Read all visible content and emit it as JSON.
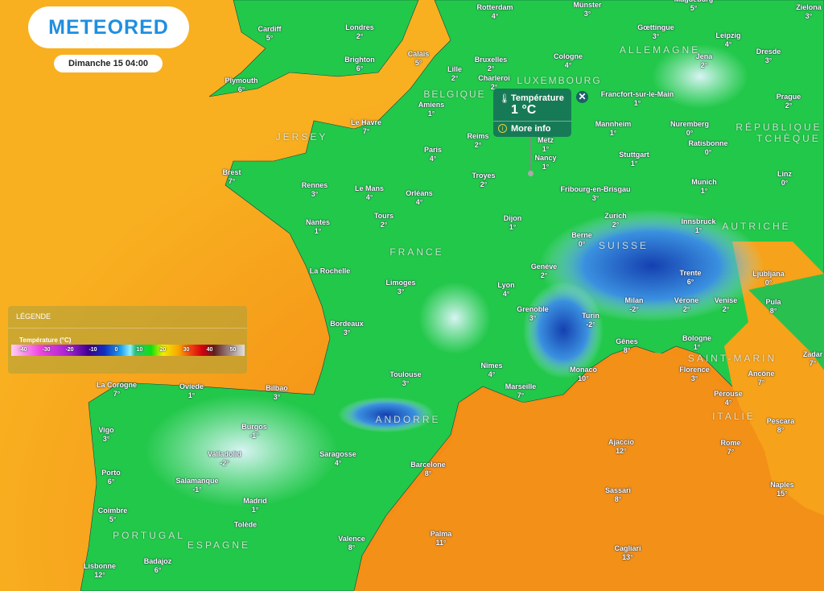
{
  "brand": {
    "logo": "METEORED",
    "date": "Dimanche 15 04:00"
  },
  "colors": {
    "sea": "#f6a21a",
    "land": "#22c84a",
    "cold": "#1e5fc8",
    "logo": "#1f8fe0"
  },
  "tooltip": {
    "icon": "thermometer-icon",
    "title": "Température",
    "value": "1 °C",
    "more": "More info",
    "close": "✕"
  },
  "legend": {
    "title": "LÉGENDE",
    "unit": "Température (°C)",
    "ticks": [
      "-40",
      "-30",
      "-20",
      "-10",
      "0",
      "10",
      "20",
      "30",
      "40",
      "50"
    ]
  },
  "countries": [
    "ALLEMAGNE",
    "BELGIQUE",
    "LUXEMBOURG",
    "RÉPUBLIQUE",
    "TCHÈQUE",
    "JERSEY",
    "FRANCE",
    "SUISSE",
    "AUTRICHE",
    "SAINT-MARIN",
    "ITALIE",
    "ANDORRE",
    "PORTUGAL",
    "ESPAGNE"
  ],
  "cities": [
    {
      "name": "Cardiff",
      "temp": "5°"
    },
    {
      "name": "Londres",
      "temp": "2°"
    },
    {
      "name": "Brighton",
      "temp": "6°"
    },
    {
      "name": "Plymouth",
      "temp": "6°"
    },
    {
      "name": "Rotterdam",
      "temp": "4°"
    },
    {
      "name": "Münster",
      "temp": "3°"
    },
    {
      "name": "Magdeburg",
      "temp": "5°"
    },
    {
      "name": "Zielona",
      "temp": "3°"
    },
    {
      "name": "Calais",
      "temp": "5°"
    },
    {
      "name": "Lille",
      "temp": "2°"
    },
    {
      "name": "Bruxelles",
      "temp": "2°"
    },
    {
      "name": "Charleroi",
      "temp": "2°"
    },
    {
      "name": "Cologne",
      "temp": "4°"
    },
    {
      "name": "Gœttingue",
      "temp": "3°"
    },
    {
      "name": "Leipzig",
      "temp": "4°"
    },
    {
      "name": "Dresde",
      "temp": "3°"
    },
    {
      "name": "Jena",
      "temp": "2°"
    },
    {
      "name": "Francfort-sur-le-Main",
      "temp": "1°"
    },
    {
      "name": "Prague",
      "temp": "2°"
    },
    {
      "name": "Amiens",
      "temp": "1°"
    },
    {
      "name": "Le Havre",
      "temp": "7°"
    },
    {
      "name": "Reims",
      "temp": "2°"
    },
    {
      "name": "Mannheim",
      "temp": "1°"
    },
    {
      "name": "Nuremberg",
      "temp": "0°"
    },
    {
      "name": "Ratisbonne",
      "temp": "0°"
    },
    {
      "name": "Metz",
      "temp": "1°"
    },
    {
      "name": "Nancy",
      "temp": "1°"
    },
    {
      "name": "Stuttgart",
      "temp": "1°"
    },
    {
      "name": "Paris",
      "temp": "4°"
    },
    {
      "name": "Brest",
      "temp": "7°"
    },
    {
      "name": "Rennes",
      "temp": "3°"
    },
    {
      "name": "Le Mans",
      "temp": "4°"
    },
    {
      "name": "Orléans",
      "temp": "4°"
    },
    {
      "name": "Troyes",
      "temp": "2°"
    },
    {
      "name": "Fribourg-en-Brisgau",
      "temp": "3°"
    },
    {
      "name": "Munich",
      "temp": "1°"
    },
    {
      "name": "Linz",
      "temp": "0°"
    },
    {
      "name": "Tours",
      "temp": "2°"
    },
    {
      "name": "Nantes",
      "temp": "1°"
    },
    {
      "name": "Dijon",
      "temp": "1°"
    },
    {
      "name": "Zurich",
      "temp": "2°"
    },
    {
      "name": "Innsbruck",
      "temp": "1°"
    },
    {
      "name": "Berne",
      "temp": "0°"
    },
    {
      "name": "Genève",
      "temp": "2°"
    },
    {
      "name": "La Rochelle",
      "temp": ""
    },
    {
      "name": "Limoges",
      "temp": "3°"
    },
    {
      "name": "Lyon",
      "temp": "4°"
    },
    {
      "name": "Trente",
      "temp": "6°"
    },
    {
      "name": "Ljubljana",
      "temp": "0°"
    },
    {
      "name": "Milan",
      "temp": "-2°"
    },
    {
      "name": "Vérone",
      "temp": "2°"
    },
    {
      "name": "Venise",
      "temp": "2°"
    },
    {
      "name": "Grenoble",
      "temp": "3°"
    },
    {
      "name": "Turin",
      "temp": "-2°"
    },
    {
      "name": "Bordeaux",
      "temp": "3°"
    },
    {
      "name": "Pula",
      "temp": "8°"
    },
    {
      "name": "Gênes",
      "temp": "8°"
    },
    {
      "name": "Bologne",
      "temp": "1°"
    },
    {
      "name": "Zadar",
      "temp": "7°"
    },
    {
      "name": "Nîmes",
      "temp": "4°"
    },
    {
      "name": "Monaco",
      "temp": "10°"
    },
    {
      "name": "Florence",
      "temp": "3°"
    },
    {
      "name": "Ancône",
      "temp": "7°"
    },
    {
      "name": "Toulouse",
      "temp": "3°"
    },
    {
      "name": "Marseille",
      "temp": "7°"
    },
    {
      "name": "La Corogne",
      "temp": "7°"
    },
    {
      "name": "Oviede",
      "temp": "1°"
    },
    {
      "name": "Bilbao",
      "temp": "3°"
    },
    {
      "name": "Pérouse",
      "temp": "4°"
    },
    {
      "name": "Burgos",
      "temp": "-1°"
    },
    {
      "name": "Vigo",
      "temp": "3°"
    },
    {
      "name": "Saragosse",
      "temp": "4°"
    },
    {
      "name": "Pescara",
      "temp": "8°"
    },
    {
      "name": "Rome",
      "temp": "7°"
    },
    {
      "name": "Ajaccio",
      "temp": "12°"
    },
    {
      "name": "Valladolid",
      "temp": "-2°"
    },
    {
      "name": "Barcelone",
      "temp": "8°"
    },
    {
      "name": "Porto",
      "temp": "6°"
    },
    {
      "name": "Salamanque",
      "temp": "-1°"
    },
    {
      "name": "Sassari",
      "temp": "8°"
    },
    {
      "name": "Naples",
      "temp": "15°"
    },
    {
      "name": "Madrid",
      "temp": "1°"
    },
    {
      "name": "Coimbre",
      "temp": "5°"
    },
    {
      "name": "Tolède",
      "temp": ""
    },
    {
      "name": "Valence",
      "temp": "8°"
    },
    {
      "name": "Palma",
      "temp": "11°"
    },
    {
      "name": "Cagliari",
      "temp": "13°"
    },
    {
      "name": "Badajoz",
      "temp": "6°"
    },
    {
      "name": "Lisbonne",
      "temp": "12°"
    }
  ]
}
